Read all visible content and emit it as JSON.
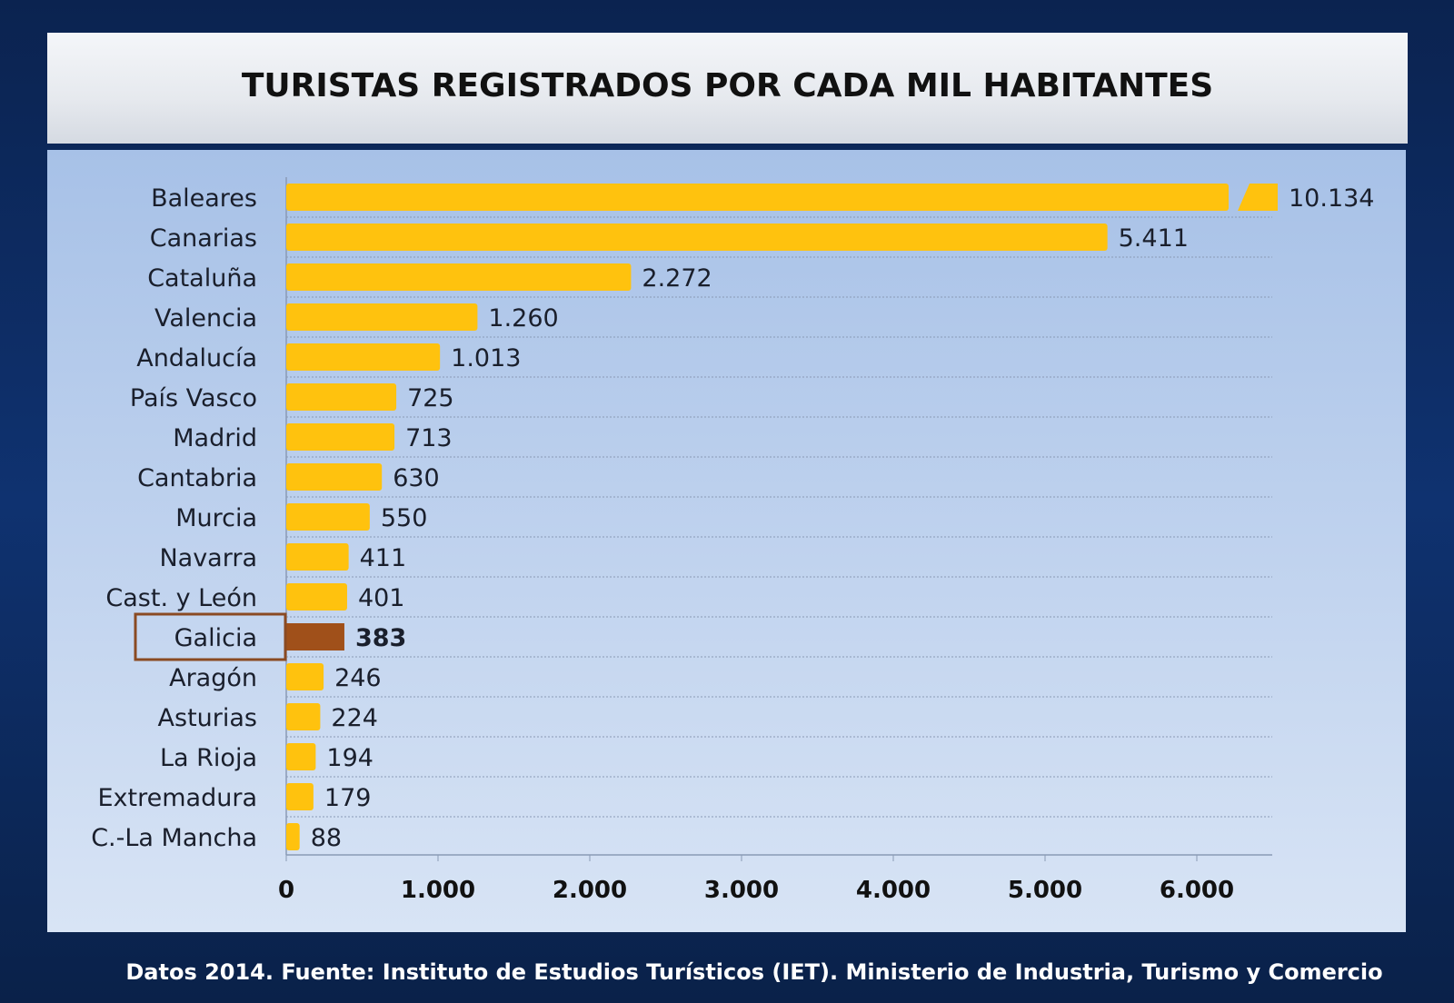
{
  "chart_data": {
    "type": "bar",
    "orientation": "horizontal",
    "title": "TURISTAS REGISTRADOS POR CADA MIL HABITANTES",
    "categories": [
      "Baleares",
      "Canarias",
      "Cataluña",
      "Valencia",
      "Andalucía",
      "País Vasco",
      "Madrid",
      "Cantabria",
      "Murcia",
      "Navarra",
      "Cast. y León",
      "Galicia",
      "Aragón",
      "Asturias",
      "La Rioja",
      "Extremadura",
      "C.-La Mancha"
    ],
    "values": [
      10134,
      5411,
      2272,
      1260,
      1013,
      725,
      713,
      630,
      550,
      411,
      401,
      383,
      246,
      224,
      194,
      179,
      88
    ],
    "value_labels": [
      "10.134",
      "5.411",
      "2.272",
      "1.260",
      "1.013",
      "725",
      "713",
      "630",
      "550",
      "411",
      "401",
      "383",
      "246",
      "224",
      "194",
      "179",
      "88"
    ],
    "xlim": [
      0,
      6500
    ],
    "xticks": [
      0,
      1000,
      2000,
      3000,
      4000,
      5000,
      6000
    ],
    "xtick_labels": [
      "0",
      "1.000",
      "2.000",
      "3.000",
      "4.000",
      "5.000",
      "6.000"
    ],
    "axis_break_on": "Baleares",
    "highlight": "Galicia",
    "grid": "horizontal dotted",
    "colors": {
      "bar": "#ffc20e",
      "highlight": "#a0501a",
      "highlight_box": "#8a4a22"
    },
    "xlabel": "",
    "ylabel": ""
  },
  "footer": "Datos 2014. Fuente: Instituto de Estudios Turísticos (IET). Ministerio de Industria,  Turismo y Comercio"
}
